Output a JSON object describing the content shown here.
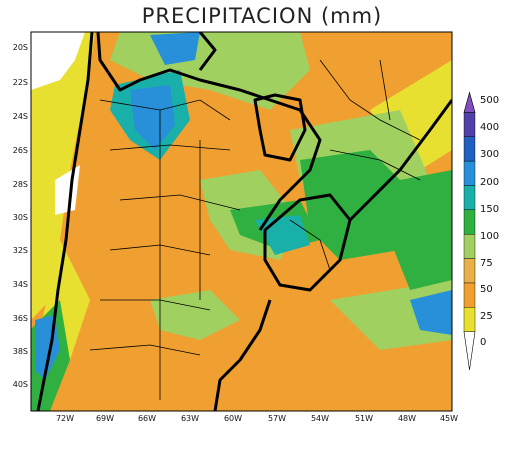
{
  "title": "PRECIPITACION (mm)",
  "lat_labels": [
    "20S",
    "22S",
    "24S",
    "26S",
    "28S",
    "30S",
    "32S",
    "34S",
    "36S",
    "38S",
    "40S"
  ],
  "lon_labels": [
    "72W",
    "69W",
    "66W",
    "63W",
    "60W",
    "57W",
    "54W",
    "51W",
    "48W",
    "45W"
  ],
  "colorbar": {
    "levels": [
      "0",
      "25",
      "50",
      "75",
      "100",
      "150",
      "200",
      "300",
      "400",
      "500"
    ],
    "colors": [
      "#e8e030",
      "#f0a030",
      "#e8b048",
      "#a0d060",
      "#30b040",
      "#18b0a8",
      "#2890d8",
      "#2060c0",
      "#5040a8",
      "#8050c0"
    ]
  },
  "map_colors": {
    "orange": "#f0a030",
    "light_orange": "#e8b048",
    "yellow": "#e8e030",
    "light_green": "#a0d060",
    "green": "#30b040",
    "teal": "#18b0a8",
    "blue": "#2890d8",
    "dark_blue": "#2060c0",
    "white": "#ffffff"
  }
}
